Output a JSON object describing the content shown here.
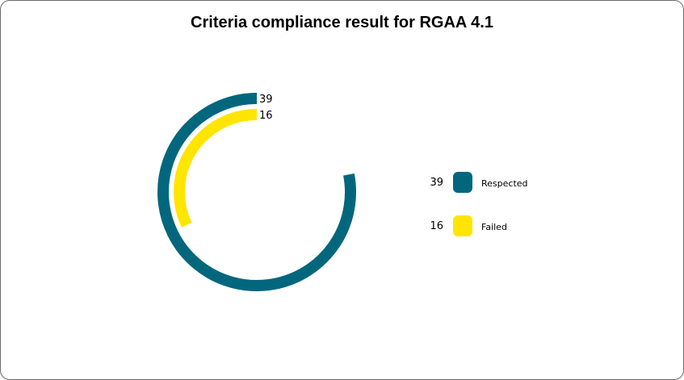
{
  "chart_data": {
    "type": "radial-bar",
    "title": "Criteria compliance result for RGAA 4.1",
    "series": [
      {
        "name": "Respected",
        "value": 39,
        "color": "#02677d"
      },
      {
        "name": "Failed",
        "value": 16,
        "color": "#ffe500"
      }
    ],
    "max": 50,
    "grid": false,
    "legend_position": "right"
  }
}
